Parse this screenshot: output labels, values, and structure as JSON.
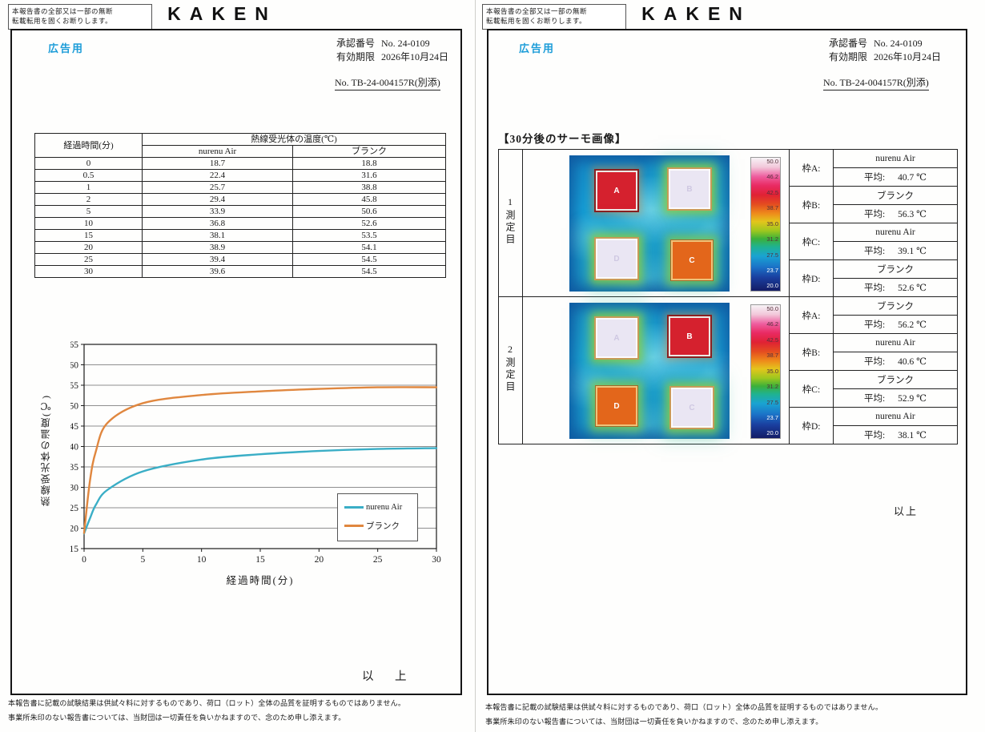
{
  "colors": {
    "accent_blue": "#1b9cd8",
    "series_sample": "#3aaec6",
    "series_blank": "#e0873f"
  },
  "shared": {
    "copy_notice_line1": "本報告書の全部又は一部の無断",
    "copy_notice_line2": "転載転用を固くお断りします。",
    "logo": "KAKEN",
    "doc_use": "広告用",
    "approval_label": "承認番号",
    "approval_value": "No. 24-0109",
    "expiry_label": "有効期限",
    "expiry_value": "2026年10月24日",
    "report_no": "No. TB-24-004157R(別添)",
    "footer_line1": "本報告書に記載の試験結果は供試々料に対するものであり、荷口（ロット）全体の品質を証明するものではありません。",
    "footer_line2": "事業所朱印のない報告書については、当財団は一切責任を負いかねますので、念のため申し添えます。"
  },
  "page_left": {
    "table": {
      "col_time": "経過時間(分)",
      "col_temp": "熱線受光体の温度(℃)",
      "col_sample": "nurenu Air",
      "col_blank": "ブランク",
      "rows": [
        [
          "0",
          "18.7",
          "18.8"
        ],
        [
          "0.5",
          "22.4",
          "31.6"
        ],
        [
          "1",
          "25.7",
          "38.8"
        ],
        [
          "2",
          "29.4",
          "45.8"
        ],
        [
          "5",
          "33.9",
          "50.6"
        ],
        [
          "10",
          "36.8",
          "52.6"
        ],
        [
          "15",
          "38.1",
          "53.5"
        ],
        [
          "20",
          "38.9",
          "54.1"
        ],
        [
          "25",
          "39.4",
          "54.5"
        ],
        [
          "30",
          "39.6",
          "54.5"
        ]
      ]
    },
    "closing": "以　上"
  },
  "chart_data": {
    "type": "line",
    "x": [
      0,
      0.5,
      1,
      2,
      5,
      10,
      15,
      20,
      25,
      30
    ],
    "series": [
      {
        "name": "nurenu Air",
        "color": "#3aaec6",
        "values": [
          18.7,
          22.4,
          25.7,
          29.4,
          33.9,
          36.8,
          38.1,
          38.9,
          39.4,
          39.6
        ]
      },
      {
        "name": "ブランク",
        "color": "#e0873f",
        "values": [
          18.8,
          31.6,
          38.8,
          45.8,
          50.6,
          52.6,
          53.5,
          54.1,
          54.5,
          54.5
        ]
      }
    ],
    "xlabel": "経過時間(分)",
    "ylabel": "熱線受光体の温度(℃)",
    "xlim": [
      0,
      30
    ],
    "ylim": [
      15,
      65
    ],
    "xtick_step": 5,
    "ytick_step": 5,
    "grid": "horizontal",
    "legend_position": "inside-bottom-right"
  },
  "page_right": {
    "section_title": "【30分後のサーモ画像】",
    "scale_labels": [
      "50.0",
      "46.2",
      "42.5",
      "38.7",
      "35.0",
      "31.2",
      "27.5",
      "23.7",
      "20.0"
    ],
    "measurements": [
      {
        "row_label": "1測定目",
        "squares": [
          {
            "label": "A",
            "tone": "red"
          },
          {
            "label": "B",
            "tone": "pale"
          },
          {
            "label": "D",
            "tone": "pale"
          },
          {
            "label": "C",
            "tone": "orange"
          }
        ],
        "frames": [
          {
            "frame_label": "枠A:",
            "material": "nurenu Air",
            "avg_label": "平均:",
            "avg_value": "40.7 ℃"
          },
          {
            "frame_label": "枠B:",
            "material": "ブランク",
            "avg_label": "平均:",
            "avg_value": "56.3 ℃"
          },
          {
            "frame_label": "枠C:",
            "material": "nurenu Air",
            "avg_label": "平均:",
            "avg_value": "39.1 ℃"
          },
          {
            "frame_label": "枠D:",
            "material": "ブランク",
            "avg_label": "平均:",
            "avg_value": "52.6 ℃"
          }
        ]
      },
      {
        "row_label": "2測定目",
        "squares": [
          {
            "label": "A",
            "tone": "pale"
          },
          {
            "label": "B",
            "tone": "red"
          },
          {
            "label": "D",
            "tone": "orange"
          },
          {
            "label": "C",
            "tone": "pale"
          }
        ],
        "frames": [
          {
            "frame_label": "枠A:",
            "material": "ブランク",
            "avg_label": "平均:",
            "avg_value": "56.2 ℃"
          },
          {
            "frame_label": "枠B:",
            "material": "nurenu Air",
            "avg_label": "平均:",
            "avg_value": "40.6 ℃"
          },
          {
            "frame_label": "枠C:",
            "material": "ブランク",
            "avg_label": "平均:",
            "avg_value": "52.9 ℃"
          },
          {
            "frame_label": "枠D:",
            "material": "nurenu Air",
            "avg_label": "平均:",
            "avg_value": "38.1 ℃"
          }
        ]
      }
    ],
    "closing": "以上"
  }
}
